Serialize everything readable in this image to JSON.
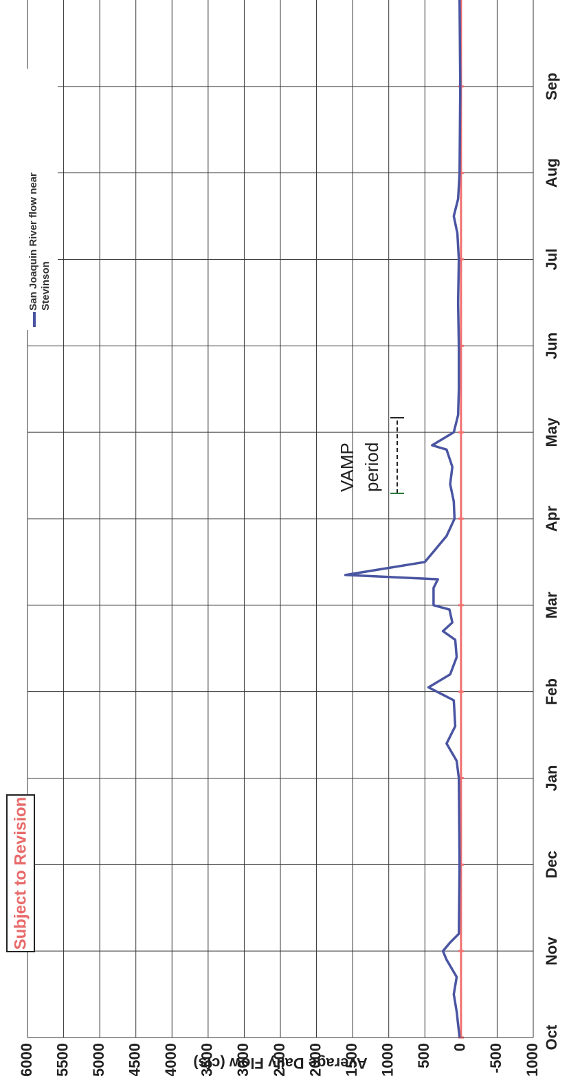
{
  "chart_data": {
    "type": "line",
    "ylabel": "Average Daily Flow (cfs)",
    "stamp": "Subject to Revision",
    "annotations": [
      "VAMP",
      "period"
    ],
    "xlim": [
      0,
      12
    ],
    "xticks": [
      {
        "value": 0,
        "label": "Oct"
      },
      {
        "value": 1,
        "label": "Nov"
      },
      {
        "value": 2,
        "label": "Dec"
      },
      {
        "value": 3,
        "label": "Jan"
      },
      {
        "value": 4,
        "label": "Feb"
      },
      {
        "value": 5,
        "label": "Mar"
      },
      {
        "value": 6,
        "label": "Apr"
      },
      {
        "value": 7,
        "label": "May"
      },
      {
        "value": 8,
        "label": "Jun"
      },
      {
        "value": 9,
        "label": "Jul"
      },
      {
        "value": 10,
        "label": "Aug"
      },
      {
        "value": 11,
        "label": "Sep"
      }
    ],
    "ylim": [
      -1000,
      6000
    ],
    "yticks": [
      -1000,
      -500,
      0,
      500,
      1000,
      1500,
      2000,
      2500,
      3000,
      3500,
      4000,
      4500,
      5000,
      5500,
      6000
    ],
    "grid": true,
    "legend": "upper right",
    "zero_line_color": "#f07070",
    "series": [
      {
        "name": "San Joaquin River flow near Stevinson",
        "color": "#4a55a2",
        "x": [
          0,
          0.3,
          0.5,
          0.7,
          0.9,
          1.0,
          1.1,
          1.2,
          2,
          3,
          3.2,
          3.4,
          3.6,
          3.9,
          4.05,
          4.2,
          4.4,
          4.6,
          4.7,
          4.8,
          4.95,
          5.0,
          5.2,
          5.3,
          5.35,
          5.5,
          5.8,
          6.0,
          6.2,
          6.4,
          6.6,
          6.8,
          6.85,
          7.0,
          7.2,
          7.5,
          8,
          8.5,
          9,
          9.3,
          9.5,
          9.7,
          10,
          11,
          12
        ],
        "values": [
          20,
          60,
          100,
          60,
          200,
          250,
          150,
          30,
          20,
          30,
          60,
          200,
          80,
          100,
          450,
          150,
          60,
          80,
          250,
          120,
          160,
          380,
          380,
          320,
          1600,
          500,
          200,
          90,
          100,
          150,
          120,
          200,
          400,
          100,
          40,
          30,
          30,
          40,
          30,
          50,
          100,
          40,
          20,
          10,
          20
        ]
      }
    ]
  }
}
